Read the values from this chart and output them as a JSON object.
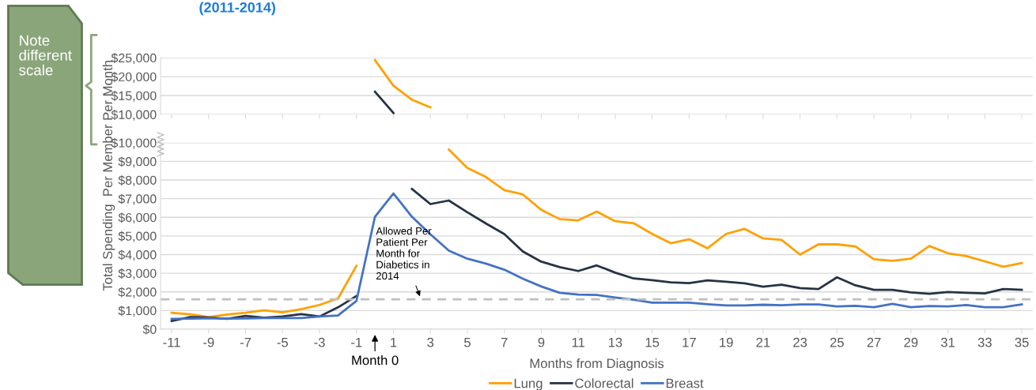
{
  "chart_data": [
    {
      "type": "line",
      "title": "(2011-2014)",
      "annotations": [
        "Note\ndifferent\nscale"
      ],
      "series": [
        {
          "color": "#ffa000",
          "x": [
            0,
            1,
            2,
            3
          ],
          "values": [
            24400,
            17600,
            13900,
            11900
          ]
        },
        {
          "color": "#263346",
          "x": [
            0,
            1
          ],
          "values": [
            16000,
            10400
          ]
        }
      ],
      "xlim": [
        -11.6,
        35.6
      ],
      "ylim": [
        10000,
        25000
      ],
      "xticks": [
        -11,
        -9,
        -7,
        -5,
        -3,
        -1,
        1,
        3,
        5,
        7,
        9,
        11,
        13,
        15,
        17,
        19,
        21,
        23,
        25,
        27,
        29,
        31,
        33,
        35
      ],
      "yticks": [
        {
          "value": 10000,
          "label": "$10,000"
        },
        {
          "value": 15000,
          "label": "$15,000"
        },
        {
          "value": 20000,
          "label": "$20,000"
        },
        {
          "value": 25000,
          "label": "$25,000"
        }
      ],
      "tick_labels": "y",
      "grid": "y",
      "legend": false
    },
    {
      "type": "line",
      "xlabel": "Months from Diagnosis",
      "ylabel": "Total Spending  Per Member Per Month",
      "annotations": [
        "Month 0"
      ],
      "x": [
        -11,
        -10,
        -9,
        -8,
        -7,
        -6,
        -5,
        -4,
        -3,
        -2,
        -1,
        0,
        1,
        2,
        3,
        4,
        5,
        6,
        7,
        8,
        9,
        10,
        11,
        12,
        13,
        14,
        15,
        16,
        17,
        18,
        19,
        20,
        21,
        22,
        23,
        24,
        25,
        26,
        27,
        28,
        29,
        30,
        31,
        32,
        33,
        34,
        35
      ],
      "series": [
        {
          "name": "Lung",
          "color": "#ffa000",
          "values": [
            880,
            800,
            650,
            790,
            880,
            1010,
            900,
            1070,
            1300,
            1650,
            3400,
            null,
            null,
            null,
            null,
            9630,
            8650,
            8170,
            7460,
            7230,
            6400,
            5900,
            5840,
            6310,
            5790,
            5680,
            5110,
            4610,
            4820,
            4340,
            5110,
            5380,
            4870,
            4790,
            4000,
            4550,
            4550,
            4440,
            3750,
            3670,
            3780,
            4460,
            4070,
            3920,
            3640,
            3350,
            3550
          ]
        },
        {
          "name": "Colorectal",
          "color": "#263346",
          "values": [
            440,
            650,
            630,
            550,
            710,
            620,
            680,
            810,
            680,
            1170,
            1780,
            null,
            null,
            7520,
            6710,
            6900,
            6270,
            5670,
            5100,
            4170,
            3620,
            3330,
            3120,
            3420,
            3030,
            2720,
            2630,
            2510,
            2470,
            2620,
            2540,
            2460,
            2280,
            2380,
            2200,
            2150,
            2780,
            2350,
            2110,
            2110,
            1970,
            1900,
            1990,
            1950,
            1920,
            2150,
            2110
          ]
        },
        {
          "name": "Breast",
          "color": "#4472c4",
          "values": [
            550,
            560,
            590,
            560,
            570,
            600,
            600,
            600,
            680,
            730,
            1520,
            6030,
            7280,
            6030,
            5090,
            4210,
            3780,
            3520,
            3190,
            2710,
            2290,
            1950,
            1860,
            1830,
            1700,
            1580,
            1420,
            1420,
            1420,
            1340,
            1270,
            1270,
            1310,
            1280,
            1330,
            1330,
            1220,
            1250,
            1180,
            1360,
            1180,
            1240,
            1220,
            1290,
            1180,
            1180,
            1330
          ]
        }
      ],
      "xlim": [
        -11.6,
        35.6
      ],
      "ylim": [
        0,
        10000
      ],
      "xticks": [
        -11,
        -9,
        -7,
        -5,
        -3,
        -1,
        1,
        3,
        5,
        7,
        9,
        11,
        13,
        15,
        17,
        19,
        21,
        23,
        25,
        27,
        29,
        31,
        33,
        35
      ],
      "yticks": [
        {
          "value": 0,
          "label": "$0"
        },
        {
          "value": 1000,
          "label": "$1,000"
        },
        {
          "value": 2000,
          "label": "$2,000"
        },
        {
          "value": 3000,
          "label": "$3,000"
        },
        {
          "value": 4000,
          "label": "$4,000"
        },
        {
          "value": 5000,
          "label": "$5,000"
        },
        {
          "value": 6000,
          "label": "$6,000"
        },
        {
          "value": 7000,
          "label": "$7,000"
        },
        {
          "value": 8000,
          "label": "$8,000"
        },
        {
          "value": 9000,
          "label": "$9,000"
        },
        {
          "value": 10000,
          "label": "$10,000"
        }
      ],
      "ref_lines": [
        {
          "axis": "y",
          "value": 1600,
          "label": "Allowed Per\nPatient Per\nMonth for\nDiabetics in\n2014",
          "color": "#bfbfbf",
          "line_style": "dashed"
        }
      ],
      "grid": "y",
      "legend": "bottom"
    }
  ]
}
